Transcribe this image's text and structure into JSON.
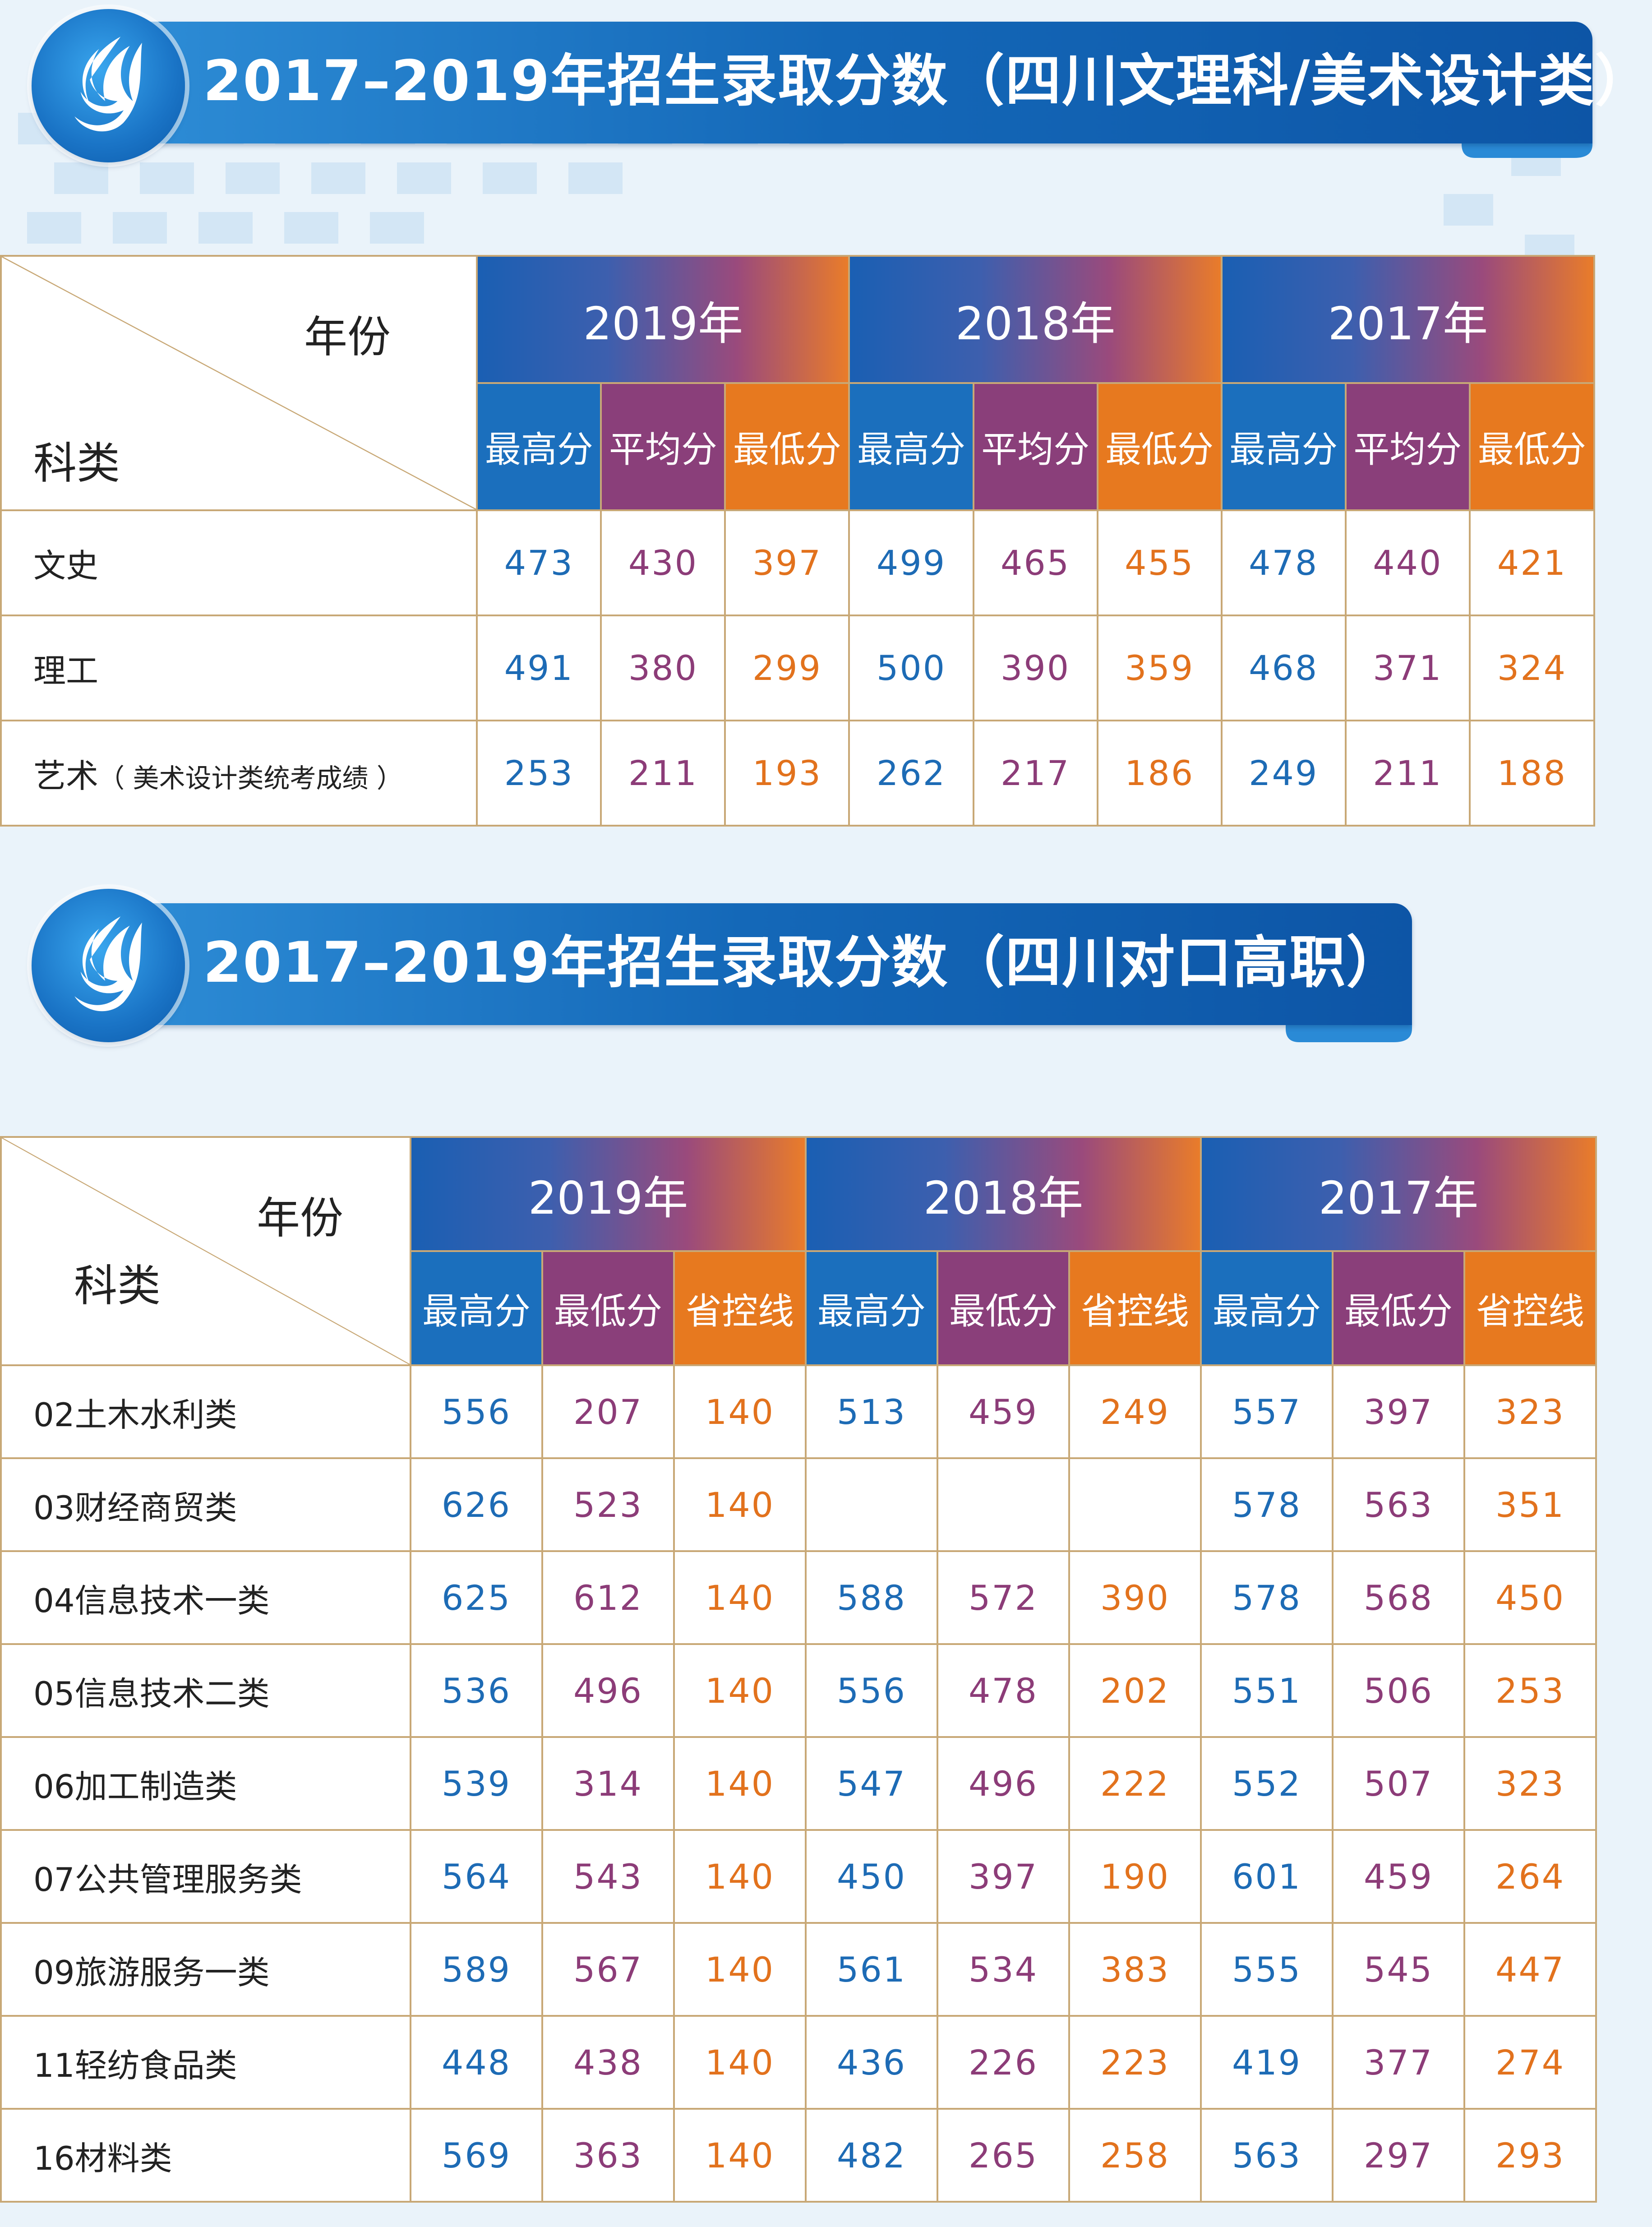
{
  "colors": {
    "blue": "#1b6fbd",
    "purple": "#8a3f7a",
    "orange": "#e7791f",
    "gold_border": "#c8a876",
    "banner_blue": "#1468b8"
  },
  "section1": {
    "logo_icon": "flame-logo-icon",
    "title": "2017–2019年招生录取分数（四川文理科/美术设计类）",
    "corner_year": "年份",
    "corner_category": "科类",
    "years": [
      "2019年",
      "2018年",
      "2017年"
    ],
    "subheaders": [
      "最高分",
      "平均分",
      "最低分"
    ],
    "rows": [
      {
        "label": "文史",
        "note": "",
        "values": [
          [
            "473",
            "430",
            "397"
          ],
          [
            "499",
            "465",
            "455"
          ],
          [
            "478",
            "440",
            "421"
          ]
        ]
      },
      {
        "label": "理工",
        "note": "",
        "values": [
          [
            "491",
            "380",
            "299"
          ],
          [
            "500",
            "390",
            "359"
          ],
          [
            "468",
            "371",
            "324"
          ]
        ]
      },
      {
        "label": "艺术",
        "note": "（ 美术设计类统考成绩 ）",
        "values": [
          [
            "253",
            "211",
            "193"
          ],
          [
            "262",
            "217",
            "186"
          ],
          [
            "249",
            "211",
            "188"
          ]
        ]
      }
    ]
  },
  "section2": {
    "logo_icon": "flame-logo-icon",
    "title": "2017–2019年招生录取分数（四川对口高职）",
    "corner_year": "年份",
    "corner_category": "科类",
    "years": [
      "2019年",
      "2018年",
      "2017年"
    ],
    "subheaders": [
      "最高分",
      "最低分",
      "省控线"
    ],
    "rows": [
      {
        "label": "02土木水利类",
        "values": [
          [
            "556",
            "207",
            "140"
          ],
          [
            "513",
            "459",
            "249"
          ],
          [
            "557",
            "397",
            "323"
          ]
        ]
      },
      {
        "label": "03财经商贸类",
        "values": [
          [
            "626",
            "523",
            "140"
          ],
          [
            "",
            "",
            ""
          ],
          [
            "578",
            "563",
            "351"
          ]
        ]
      },
      {
        "label": "04信息技术一类",
        "values": [
          [
            "625",
            "612",
            "140"
          ],
          [
            "588",
            "572",
            "390"
          ],
          [
            "578",
            "568",
            "450"
          ]
        ]
      },
      {
        "label": "05信息技术二类",
        "values": [
          [
            "536",
            "496",
            "140"
          ],
          [
            "556",
            "478",
            "202"
          ],
          [
            "551",
            "506",
            "253"
          ]
        ]
      },
      {
        "label": "06加工制造类",
        "values": [
          [
            "539",
            "314",
            "140"
          ],
          [
            "547",
            "496",
            "222"
          ],
          [
            "552",
            "507",
            "323"
          ]
        ]
      },
      {
        "label": "07公共管理服务类",
        "values": [
          [
            "564",
            "543",
            "140"
          ],
          [
            "450",
            "397",
            "190"
          ],
          [
            "601",
            "459",
            "264"
          ]
        ]
      },
      {
        "label": "09旅游服务一类",
        "values": [
          [
            "589",
            "567",
            "140"
          ],
          [
            "561",
            "534",
            "383"
          ],
          [
            "555",
            "545",
            "447"
          ]
        ]
      },
      {
        "label": "11轻纺食品类",
        "values": [
          [
            "448",
            "438",
            "140"
          ],
          [
            "436",
            "226",
            "223"
          ],
          [
            "419",
            "377",
            "274"
          ]
        ]
      },
      {
        "label": "16材料类",
        "values": [
          [
            "569",
            "363",
            "140"
          ],
          [
            "482",
            "265",
            "258"
          ],
          [
            "563",
            "297",
            "293"
          ]
        ]
      }
    ]
  }
}
